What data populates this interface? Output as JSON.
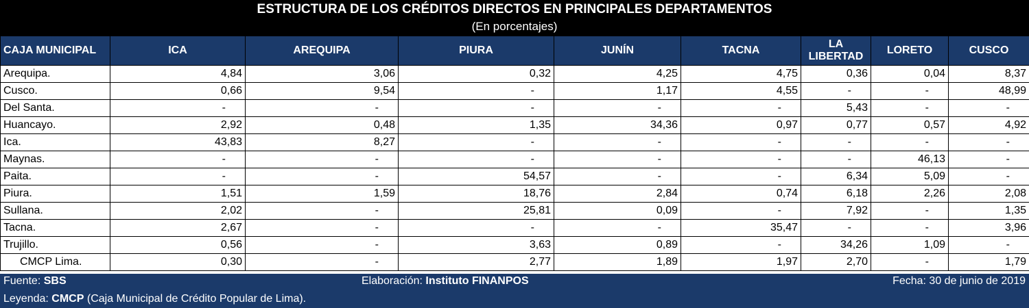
{
  "header": {
    "title": "ESTRUCTURA DE LOS CRÉDITOS DIRECTOS EN PRINCIPALES DEPARTAMENTOS",
    "subtitle": "(En porcentajes)"
  },
  "table": {
    "columns": [
      "CAJA MUNICIPAL",
      "ICA",
      "AREQUIPA",
      "PIURA",
      "JUNÍN",
      "TACNA",
      "LA LIBERTAD",
      "LORETO",
      "CUSCO"
    ],
    "rows": [
      [
        "Arequipa.",
        "4,84",
        "3,06",
        "0,32",
        "4,25",
        "4,75",
        "0,36",
        "0,04",
        "8,37"
      ],
      [
        "Cusco.",
        "0,66",
        "9,54",
        "-",
        "1,17",
        "4,55",
        "-",
        "-",
        "48,99"
      ],
      [
        "Del Santa.",
        "-",
        "-",
        "-",
        "-",
        "-",
        "5,43",
        "-",
        "-"
      ],
      [
        "Huancayo.",
        "2,92",
        "0,48",
        "1,35",
        "34,36",
        "0,97",
        "0,77",
        "0,57",
        "4,92"
      ],
      [
        "Ica.",
        "43,83",
        "8,27",
        "-",
        "-",
        "-",
        "-",
        "-",
        "-"
      ],
      [
        "Maynas.",
        "-",
        "-",
        "-",
        "-",
        "-",
        "-",
        "46,13",
        "-"
      ],
      [
        "Paita.",
        "-",
        "-",
        "54,57",
        "-",
        "-",
        "6,34",
        "5,09",
        "-"
      ],
      [
        "Piura.",
        "1,51",
        "1,59",
        "18,76",
        "2,84",
        "0,74",
        "6,18",
        "2,26",
        "2,08"
      ],
      [
        "Sullana.",
        "2,02",
        "-",
        "25,81",
        "0,09",
        "-",
        "7,92",
        "-",
        "1,35"
      ],
      [
        "Tacna.",
        "2,67",
        "-",
        "-",
        "-",
        "35,47",
        "-",
        "-",
        "3,96"
      ],
      [
        "Trujillo.",
        "0,56",
        "-",
        "3,63",
        "0,89",
        "-",
        "34,26",
        "1,09",
        "-"
      ],
      [
        "CMCP Lima.",
        "0,30",
        "-",
        "2,77",
        "1,89",
        "1,97",
        "2,70",
        "-",
        "1,79"
      ]
    ]
  },
  "footer": {
    "source_label": "Fuente:",
    "source_value": "SBS",
    "prepared_label": "Elaboración:",
    "prepared_value": "Instituto FINANPOS",
    "date_text": "Fecha: 30 de junio de 2019",
    "legend_label": "Leyenda:",
    "legend_term": "CMCP",
    "legend_desc": "(Caja Municipal de Crédito Popular de Lima)."
  },
  "colors": {
    "header_bg": "#1b3a6a",
    "title_bg": "#000000"
  }
}
